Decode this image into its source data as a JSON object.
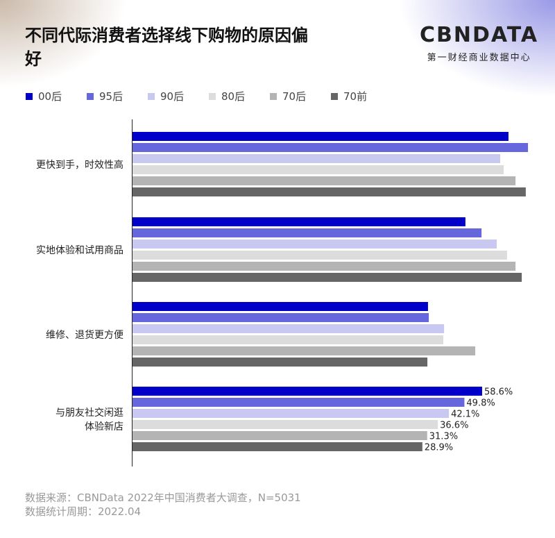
{
  "title": "不同代际消费者选择线下购物的原因偏好",
  "logo": {
    "name": "CBNDATA",
    "tagline": "第一财经商业数据中心"
  },
  "chart_data": {
    "type": "bar",
    "orientation": "horizontal",
    "categories": [
      "更快到手，时效性高",
      "实地体验和试用商品",
      "维修、退货更方便",
      "与朋友社交闲逛体验新店"
    ],
    "category_lines": [
      [
        "更快到手，时效性高"
      ],
      [
        "实地体验和试用商品"
      ],
      [
        "维修、退货更方便"
      ],
      [
        "与朋友社交闲逛",
        "体验新店"
      ]
    ],
    "series": [
      {
        "name": "00后",
        "color": "#0000c8",
        "values": [
          71.7,
          50.3,
          31.7,
          58.6
        ]
      },
      {
        "name": "95后",
        "color": "#6666dd",
        "values": [
          81.4,
          58.3,
          32.1,
          49.8
        ]
      },
      {
        "name": "90后",
        "color": "#c8c8f0",
        "values": [
          67.6,
          65.9,
          39.7,
          42.1
        ]
      },
      {
        "name": "80后",
        "color": "#dcdcdc",
        "values": [
          69.3,
          71.0,
          39.3,
          36.6
        ]
      },
      {
        "name": "70后",
        "color": "#b4b4b4",
        "values": [
          75.2,
          75.2,
          55.2,
          31.3
        ]
      },
      {
        "name": "70前",
        "color": "#666666",
        "values": [
          80.3,
          78.3,
          31.4,
          28.9
        ]
      }
    ],
    "data_labels": {
      "category_index": 3,
      "labels": [
        "58.6%",
        "49.8%",
        "42.1%",
        "36.6%",
        "31.3%",
        "28.9%"
      ]
    },
    "legend": "top-left",
    "grid": false
  },
  "footer": {
    "source": "数据来源：CBNData 2022年中国消费者大调查，N=5031",
    "period": "数据统计周期：2022.04"
  }
}
